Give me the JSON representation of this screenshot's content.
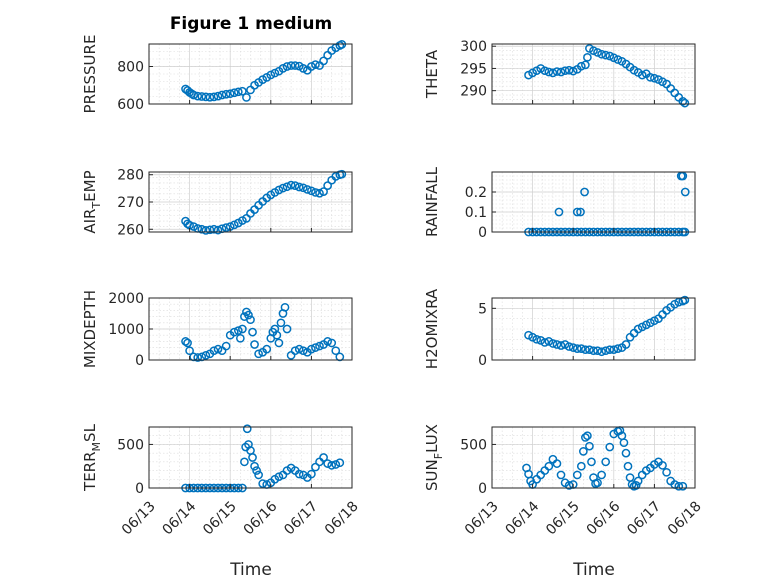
{
  "figure_title": "Figure 1 medium",
  "x_axis_label": "Time",
  "x_ticks": [
    "06/13",
    "06/14",
    "06/15",
    "06/16",
    "06/17",
    "06/18"
  ],
  "marker_color": "#0072BD",
  "chart_data": [
    {
      "type": "scatter",
      "ylabel": "PRESSURE",
      "title": "Figure 1 medium",
      "xlim": [
        13,
        18
      ],
      "ylim": [
        600,
        920
      ],
      "yticks": [
        600,
        800
      ],
      "x": [
        13.9,
        13.95,
        14.0,
        14.05,
        14.1,
        14.2,
        14.3,
        14.4,
        14.5,
        14.6,
        14.7,
        14.8,
        14.9,
        15.0,
        15.1,
        15.2,
        15.3,
        15.4,
        15.5,
        15.6,
        15.7,
        15.8,
        15.9,
        16.0,
        16.1,
        16.2,
        16.3,
        16.4,
        16.5,
        16.6,
        16.7,
        16.8,
        16.9,
        17.0,
        17.1,
        17.2,
        17.3,
        17.4,
        17.5,
        17.6,
        17.7,
        17.75
      ],
      "y": [
        680,
        672,
        662,
        655,
        648,
        642,
        640,
        638,
        636,
        638,
        642,
        648,
        652,
        655,
        660,
        665,
        668,
        635,
        675,
        700,
        715,
        730,
        742,
        755,
        765,
        775,
        790,
        800,
        805,
        805,
        802,
        790,
        780,
        800,
        810,
        805,
        830,
        860,
        885,
        900,
        912,
        918
      ]
    },
    {
      "type": "scatter",
      "ylabel": "THETA",
      "xlim": [
        13,
        18
      ],
      "ylim": [
        287,
        300.5
      ],
      "yticks": [
        290,
        295,
        300
      ],
      "x": [
        13.9,
        14.0,
        14.1,
        14.2,
        14.3,
        14.4,
        14.5,
        14.6,
        14.7,
        14.8,
        14.9,
        15.0,
        15.1,
        15.2,
        15.3,
        15.35,
        15.4,
        15.5,
        15.6,
        15.7,
        15.8,
        15.9,
        16.0,
        16.1,
        16.2,
        16.3,
        16.4,
        16.5,
        16.6,
        16.7,
        16.8,
        16.9,
        17.0,
        17.1,
        17.2,
        17.3,
        17.4,
        17.5,
        17.6,
        17.7,
        17.75
      ],
      "y": [
        293.5,
        294,
        294.5,
        295.0,
        294.5,
        294.2,
        294.0,
        294.3,
        294.2,
        294.5,
        294.6,
        294.4,
        294.8,
        295.5,
        295.8,
        297.5,
        299.5,
        299.0,
        298.6,
        298.2,
        298.0,
        297.8,
        297.4,
        297.0,
        296.6,
        296.0,
        295.3,
        294.6,
        294.1,
        293.5,
        293.8,
        293.0,
        292.8,
        292.5,
        292.0,
        291.5,
        290.5,
        289.5,
        288.5,
        287.6,
        287.2
      ]
    },
    {
      "type": "scatter",
      "ylabel": "AIR_TEMP",
      "xlim": [
        13,
        18
      ],
      "ylim": [
        259,
        281
      ],
      "yticks": [
        260,
        270,
        280
      ],
      "x": [
        13.9,
        13.95,
        14.0,
        14.1,
        14.2,
        14.3,
        14.4,
        14.5,
        14.6,
        14.7,
        14.8,
        14.9,
        15.0,
        15.1,
        15.2,
        15.3,
        15.4,
        15.5,
        15.6,
        15.7,
        15.8,
        15.9,
        16.0,
        16.1,
        16.2,
        16.3,
        16.4,
        16.5,
        16.6,
        16.7,
        16.8,
        16.9,
        17.0,
        17.1,
        17.2,
        17.3,
        17.4,
        17.5,
        17.6,
        17.7,
        17.75
      ],
      "y": [
        263,
        262,
        261.5,
        261,
        260.3,
        260,
        259.6,
        259.8,
        260,
        259.7,
        260.2,
        260.6,
        261,
        261.6,
        262.3,
        263.2,
        264,
        265.8,
        267.2,
        268.8,
        270.2,
        271.5,
        272.6,
        273.5,
        274.4,
        275.1,
        275.6,
        276.2,
        276.0,
        275.5,
        275.2,
        274.6,
        274.1,
        273.5,
        273.2,
        273.8,
        276.0,
        278.0,
        279.4,
        280.0,
        280.2
      ]
    },
    {
      "type": "scatter",
      "ylabel": "RAINFALL",
      "xlim": [
        13,
        18
      ],
      "ylim": [
        0,
        0.3
      ],
      "yticks": [
        0,
        0.1,
        0.2
      ],
      "x": [
        13.9,
        14.0,
        14.1,
        14.2,
        14.3,
        14.4,
        14.5,
        14.6,
        14.7,
        14.8,
        14.9,
        15.0,
        15.1,
        15.2,
        15.3,
        15.4,
        15.5,
        15.6,
        15.7,
        15.8,
        15.9,
        16.0,
        16.1,
        16.2,
        16.3,
        16.4,
        16.5,
        16.6,
        16.7,
        16.8,
        16.9,
        17.0,
        17.1,
        17.2,
        17.3,
        17.4,
        17.5,
        17.6,
        17.7,
        17.75,
        14.65,
        15.1,
        15.18,
        15.28,
        17.66,
        17.7,
        17.76
      ],
      "y": [
        0,
        0,
        0,
        0,
        0,
        0,
        0,
        0,
        0,
        0,
        0,
        0,
        0,
        0,
        0,
        0,
        0,
        0,
        0,
        0,
        0,
        0,
        0,
        0,
        0,
        0,
        0,
        0,
        0,
        0,
        0,
        0,
        0,
        0,
        0,
        0,
        0,
        0,
        0,
        0,
        0.1,
        0.1,
        0.1,
        0.2,
        0.28,
        0.28,
        0.2
      ]
    },
    {
      "type": "scatter",
      "ylabel": "MIXDEPTH",
      "xlim": [
        13,
        18
      ],
      "ylim": [
        0,
        2000
      ],
      "yticks": [
        0,
        1000,
        2000
      ],
      "x": [
        13.9,
        13.95,
        14.0,
        14.1,
        14.2,
        14.3,
        14.4,
        14.5,
        14.6,
        14.7,
        14.8,
        14.9,
        15.0,
        15.1,
        15.2,
        15.25,
        15.3,
        15.35,
        15.4,
        15.45,
        15.5,
        15.55,
        15.6,
        15.7,
        15.8,
        15.9,
        16.0,
        16.05,
        16.1,
        16.15,
        16.2,
        16.25,
        16.3,
        16.35,
        16.4,
        16.5,
        16.6,
        16.7,
        16.8,
        16.9,
        17.0,
        17.1,
        17.2,
        17.3,
        17.4,
        17.5,
        17.6,
        17.7
      ],
      "y": [
        600,
        550,
        300,
        100,
        80,
        100,
        150,
        200,
        300,
        350,
        300,
        450,
        800,
        900,
        950,
        700,
        1000,
        1400,
        1550,
        1450,
        1300,
        900,
        500,
        200,
        250,
        350,
        700,
        900,
        1000,
        800,
        550,
        1200,
        1500,
        1700,
        1000,
        150,
        300,
        350,
        300,
        250,
        350,
        400,
        450,
        500,
        600,
        550,
        300,
        100
      ]
    },
    {
      "type": "scatter",
      "ylabel": "H2OMIXRA",
      "xlim": [
        13,
        18
      ],
      "ylim": [
        0,
        6
      ],
      "yticks": [
        0,
        5
      ],
      "x": [
        13.9,
        14.0,
        14.1,
        14.2,
        14.3,
        14.4,
        14.5,
        14.6,
        14.7,
        14.8,
        14.9,
        15.0,
        15.1,
        15.2,
        15.3,
        15.4,
        15.5,
        15.6,
        15.7,
        15.8,
        15.9,
        16.0,
        16.1,
        16.2,
        16.3,
        16.4,
        16.5,
        16.6,
        16.7,
        16.8,
        16.9,
        17.0,
        17.1,
        17.2,
        17.3,
        17.4,
        17.5,
        17.6,
        17.7,
        17.75
      ],
      "y": [
        2.4,
        2.2,
        2.0,
        1.9,
        1.7,
        1.8,
        1.6,
        1.5,
        1.4,
        1.5,
        1.3,
        1.2,
        1.1,
        1.1,
        1.0,
        1.0,
        0.9,
        0.9,
        0.8,
        0.9,
        1.0,
        1.0,
        1.1,
        1.2,
        1.5,
        2.2,
        2.6,
        3.0,
        3.2,
        3.4,
        3.6,
        3.8,
        4.0,
        4.4,
        4.8,
        5.1,
        5.4,
        5.6,
        5.7,
        5.8
      ]
    },
    {
      "type": "scatter",
      "ylabel": "TERR_MSL",
      "xlim": [
        13,
        18
      ],
      "ylim": [
        0,
        700
      ],
      "yticks": [
        0,
        500
      ],
      "x": [
        13.9,
        14.0,
        14.1,
        14.2,
        14.3,
        14.4,
        14.5,
        14.6,
        14.7,
        14.8,
        14.9,
        15.0,
        15.1,
        15.2,
        15.3,
        15.35,
        15.38,
        15.42,
        15.45,
        15.5,
        15.55,
        15.6,
        15.65,
        15.7,
        15.8,
        15.9,
        16.0,
        16.1,
        16.2,
        16.3,
        16.4,
        16.5,
        16.6,
        16.7,
        16.8,
        16.9,
        17.0,
        17.1,
        17.2,
        17.3,
        17.4,
        17.5,
        17.6,
        17.7
      ],
      "y": [
        0,
        0,
        0,
        0,
        0,
        0,
        0,
        0,
        0,
        0,
        0,
        0,
        0,
        0,
        0,
        300,
        470,
        680,
        500,
        430,
        350,
        250,
        200,
        150,
        50,
        40,
        60,
        100,
        130,
        150,
        200,
        230,
        200,
        160,
        150,
        120,
        160,
        240,
        300,
        350,
        280,
        260,
        270,
        290
      ]
    },
    {
      "type": "scatter",
      "ylabel": "SUN_FLUX",
      "xlim": [
        13,
        18
      ],
      "ylim": [
        0,
        700
      ],
      "yticks": [
        0,
        500
      ],
      "x": [
        13.85,
        13.9,
        13.95,
        14.0,
        14.1,
        14.2,
        14.3,
        14.4,
        14.5,
        14.6,
        14.7,
        14.8,
        14.9,
        15.0,
        15.1,
        15.2,
        15.25,
        15.3,
        15.35,
        15.4,
        15.45,
        15.5,
        15.55,
        15.6,
        15.7,
        15.8,
        15.9,
        16.0,
        16.1,
        16.15,
        16.2,
        16.25,
        16.3,
        16.35,
        16.4,
        16.45,
        16.5,
        16.55,
        16.6,
        16.7,
        16.8,
        16.9,
        17.0,
        17.1,
        17.2,
        17.3,
        17.4,
        17.5,
        17.6,
        17.7
      ],
      "y": [
        230,
        160,
        80,
        40,
        100,
        150,
        200,
        250,
        330,
        280,
        150,
        60,
        30,
        40,
        150,
        250,
        420,
        580,
        600,
        480,
        300,
        120,
        50,
        60,
        150,
        300,
        470,
        620,
        650,
        660,
        600,
        520,
        400,
        250,
        120,
        40,
        20,
        30,
        80,
        150,
        200,
        230,
        270,
        300,
        260,
        180,
        80,
        40,
        20,
        20
      ]
    }
  ]
}
